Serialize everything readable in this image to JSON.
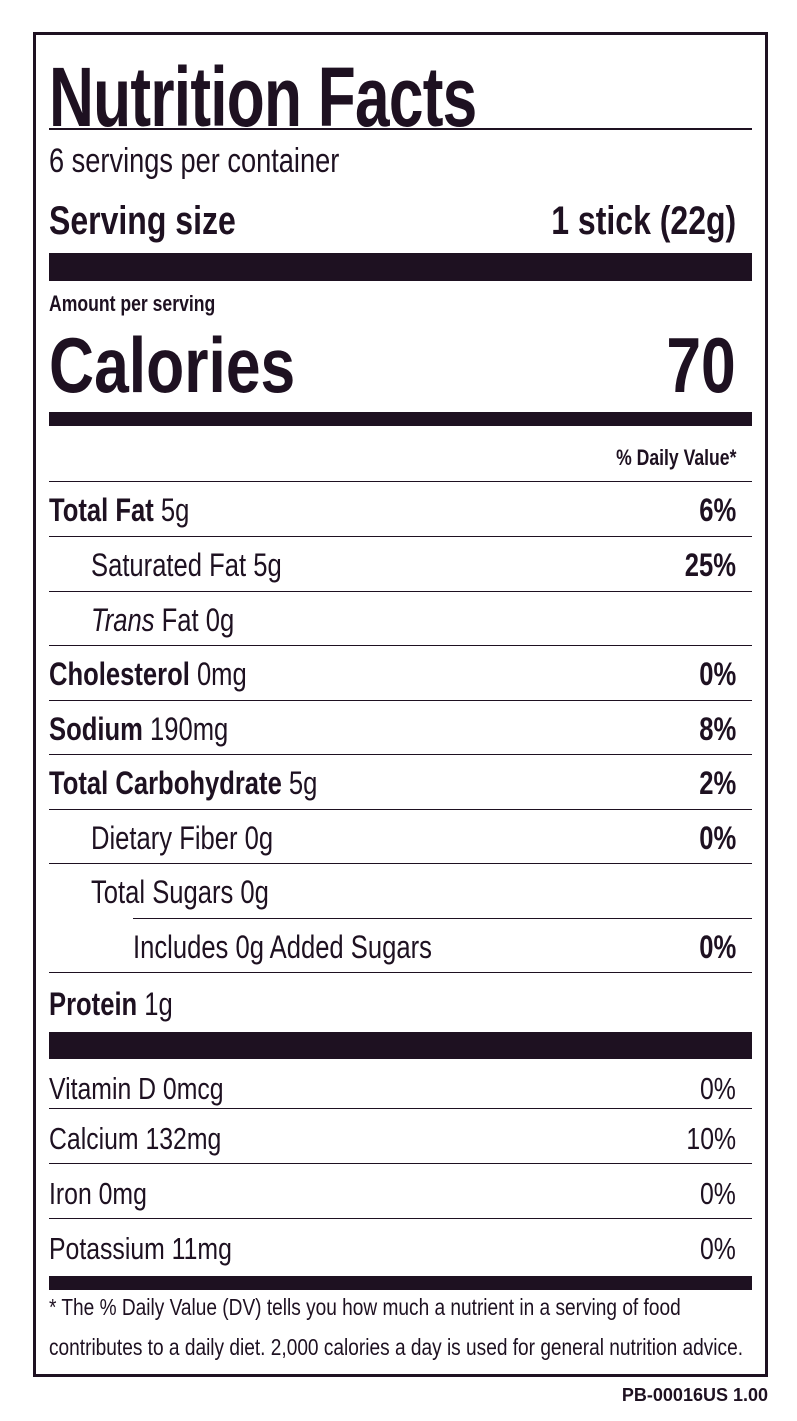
{
  "title": "Nutrition Facts",
  "servings_per_container": "6 servings per container",
  "serving_size": {
    "label": "Serving size",
    "value": "1 stick (22g)"
  },
  "amount_per_serving": "Amount per serving",
  "calories": {
    "label": "Calories",
    "value": "70"
  },
  "daily_value_header": "% Daily Value*",
  "nutrients": [
    {
      "name": "Total Fat",
      "amount": "5g",
      "dv": "6%"
    },
    {
      "name": "Saturated Fat",
      "amount": "5g",
      "dv": "25%"
    },
    {
      "name_italic": "Trans",
      "name": "Fat",
      "amount": "0g",
      "dv": ""
    },
    {
      "name": "Cholesterol",
      "amount": "0mg",
      "dv": "0%"
    },
    {
      "name": "Sodium",
      "amount": "190mg",
      "dv": "8%"
    },
    {
      "name": "Total Carbohydrate",
      "amount": "5g",
      "dv": "2%"
    },
    {
      "name": "Dietary Fiber",
      "amount": "0g",
      "dv": "0%"
    },
    {
      "name": "Total Sugars",
      "amount": "0g",
      "dv": ""
    },
    {
      "name": "Includes 0g Added Sugars",
      "amount": "",
      "dv": "0%"
    },
    {
      "name": "Protein",
      "amount": "1g",
      "dv": ""
    }
  ],
  "vitamins": [
    {
      "name": "Vitamin D 0mcg",
      "dv": "0%"
    },
    {
      "name": "Calcium 132mg",
      "dv": "10%"
    },
    {
      "name": "Iron 0mg",
      "dv": "0%"
    },
    {
      "name": "Potassium 11mg",
      "dv": "0%"
    }
  ],
  "footnote": {
    "line1": "* The % Daily Value (DV) tells you how much a nutrient in a serving of food",
    "line2": "contributes to a daily diet. 2,000 calories a day is used for general nutrition advice."
  },
  "product_code": "PB-00016US 1.00",
  "colors": {
    "ink": "#1e1121",
    "background": "#ffffff"
  }
}
